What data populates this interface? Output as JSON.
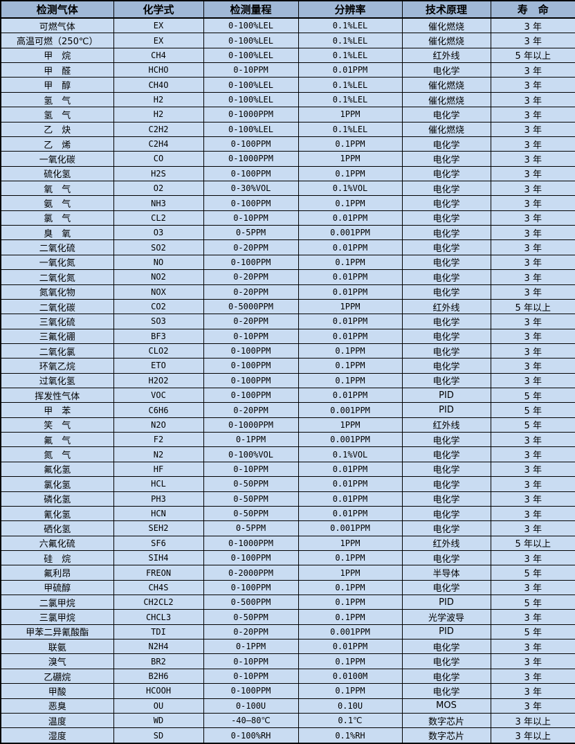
{
  "table": {
    "title": "gas-detector-specification-table",
    "headers": [
      "检测气体",
      "化学式",
      "检测量程",
      "分辨率",
      "技术原理",
      "寿　命"
    ],
    "colors": {
      "header_bg": "#a0b8d6",
      "row_bg": "#c9dcf2",
      "border": "#000000",
      "text": "#000000"
    },
    "rows": [
      [
        "可燃气体",
        "EX",
        "0-100%LEL",
        "0.1%LEL",
        "催化燃烧",
        "3 年"
      ],
      [
        "高温可燃（250℃）",
        "EX",
        "0-100%LEL",
        "0.1%LEL",
        "催化燃烧",
        "3 年"
      ],
      [
        "甲　烷",
        "CH4",
        "0-100%LEL",
        "0.1%LEL",
        "红外线",
        "5 年以上"
      ],
      [
        "甲　醛",
        "HCHO",
        "0-10PPM",
        "0.01PPM",
        "电化学",
        "3 年"
      ],
      [
        "甲　醇",
        "CH4O",
        "0-100%LEL",
        "0.1%LEL",
        "催化燃烧",
        "3 年"
      ],
      [
        "氢　气",
        "H2",
        "0-100%LEL",
        "0.1%LEL",
        "催化燃烧",
        "3 年"
      ],
      [
        "氢　气",
        "H2",
        "0-1000PPM",
        "1PPM",
        "电化学",
        "3 年"
      ],
      [
        "乙　炔",
        "C2H2",
        "0-100%LEL",
        "0.1%LEL",
        "催化燃烧",
        "3 年"
      ],
      [
        "乙　烯",
        "C2H4",
        "0-100PPM",
        "0.1PPM",
        "电化学",
        "3 年"
      ],
      [
        "一氧化碳",
        "CO",
        "0-1000PPM",
        "1PPM",
        "电化学",
        "3 年"
      ],
      [
        "硫化氢",
        "H2S",
        "0-100PPM",
        "0.1PPM",
        "电化学",
        "3 年"
      ],
      [
        "氧　气",
        "O2",
        "0-30%VOL",
        "0.1%VOL",
        "电化学",
        "3 年"
      ],
      [
        "氨　气",
        "NH3",
        "0-100PPM",
        "0.1PPM",
        "电化学",
        "3 年"
      ],
      [
        "氯　气",
        "CL2",
        "0-10PPM",
        "0.01PPM",
        "电化学",
        "3 年"
      ],
      [
        "臭　氧",
        "O3",
        "0-5PPM",
        "0.001PPM",
        "电化学",
        "3 年"
      ],
      [
        "二氧化硫",
        "SO2",
        "0-20PPM",
        "0.01PPM",
        "电化学",
        "3 年"
      ],
      [
        "一氧化氮",
        "NO",
        "0-100PPM",
        "0.1PPM",
        "电化学",
        "3 年"
      ],
      [
        "二氧化氮",
        "NO2",
        "0-20PPM",
        "0.01PPM",
        "电化学",
        "3 年"
      ],
      [
        "氮氧化物",
        "NOX",
        "0-20PPM",
        "0.01PPM",
        "电化学",
        "3 年"
      ],
      [
        "二氧化碳",
        "CO2",
        "0-5000PPM",
        "1PPM",
        "红外线",
        "5 年以上"
      ],
      [
        "三氧化硫",
        "SO3",
        "0-20PPM",
        "0.01PPM",
        "电化学",
        "3 年"
      ],
      [
        "三氟化硼",
        "BF3",
        "0-10PPM",
        "0.01PPM",
        "电化学",
        "3 年"
      ],
      [
        "二氧化氯",
        "CLO2",
        "0-100PPM",
        "0.1PPM",
        "电化学",
        "3 年"
      ],
      [
        "环氧乙烷",
        "ETO",
        "0-100PPM",
        "0.1PPM",
        "电化学",
        "3 年"
      ],
      [
        "过氧化氢",
        "H2O2",
        "0-100PPM",
        "0.1PPM",
        "电化学",
        "3 年"
      ],
      [
        "挥发性气体",
        "VOC",
        "0-100PPM",
        "0.01PPM",
        "PID",
        "5 年"
      ],
      [
        "甲　苯",
        "C6H6",
        "0-20PPM",
        "0.001PPM",
        "PID",
        "5 年"
      ],
      [
        "笑　气",
        "N2O",
        "0-1000PPM",
        "1PPM",
        "红外线",
        "5 年"
      ],
      [
        "氟　气",
        "F2",
        "0-1PPM",
        "0.001PPM",
        "电化学",
        "3 年"
      ],
      [
        "氮　气",
        "N2",
        "0-100%VOL",
        "0.1%VOL",
        "电化学",
        "3 年"
      ],
      [
        "氟化氢",
        "HF",
        "0-10PPM",
        "0.01PPM",
        "电化学",
        "3 年"
      ],
      [
        "氯化氢",
        "HCL",
        "0-50PPM",
        "0.01PPM",
        "电化学",
        "3 年"
      ],
      [
        "磷化氢",
        "PH3",
        "0-50PPM",
        "0.01PPM",
        "电化学",
        "3 年"
      ],
      [
        "氰化氢",
        "HCN",
        "0-50PPM",
        "0.01PPM",
        "电化学",
        "3 年"
      ],
      [
        "硒化氢",
        "SEH2",
        "0-5PPM",
        "0.001PPM",
        "电化学",
        "3 年"
      ],
      [
        "六氟化硫",
        "SF6",
        "0-1000PPM",
        "1PPM",
        "红外线",
        "5 年以上"
      ],
      [
        "硅　烷",
        "SIH4",
        "0-100PPM",
        "0.1PPM",
        "电化学",
        "3 年"
      ],
      [
        "氟利昂",
        "FREON",
        "0-2000PPM",
        "1PPM",
        "半导体",
        "5 年"
      ],
      [
        "甲硫醇",
        "CH4S",
        "0-100PPM",
        "0.1PPM",
        "电化学",
        "3 年"
      ],
      [
        "二氯甲烷",
        "CH2CL2",
        "0-500PPM",
        "0.1PPM",
        "PID",
        "5 年"
      ],
      [
        "三氯甲烷",
        "CHCL3",
        "0-50PPM",
        "0.1PPM",
        "光学波导",
        "3 年"
      ],
      [
        "甲苯二异氰酸酯",
        "TDI",
        "0-20PPM",
        "0.001PPM",
        "PID",
        "5 年"
      ],
      [
        "联氨",
        "N2H4",
        "0-1PPM",
        "0.01PPM",
        "电化学",
        "3 年"
      ],
      [
        "溴气",
        "BR2",
        "0-10PPM",
        "0.1PPM",
        "电化学",
        "3 年"
      ],
      [
        "乙硼烷",
        "B2H6",
        "0-10PPM",
        "0.0100M",
        "电化学",
        "3 年"
      ],
      [
        "甲酸",
        "HCOOH",
        "0-100PPM",
        "0.1PPM",
        "电化学",
        "3 年"
      ],
      [
        "恶臭",
        "OU",
        "0-100U",
        "0.10U",
        "MOS",
        "3 年"
      ],
      [
        "温度",
        "WD",
        "-40—80℃",
        "0.1℃",
        "数字芯片",
        "3 年以上"
      ],
      [
        "湿度",
        "SD",
        "0-100%RH",
        "0.1%RH",
        "数字芯片",
        "3 年以上"
      ]
    ]
  }
}
